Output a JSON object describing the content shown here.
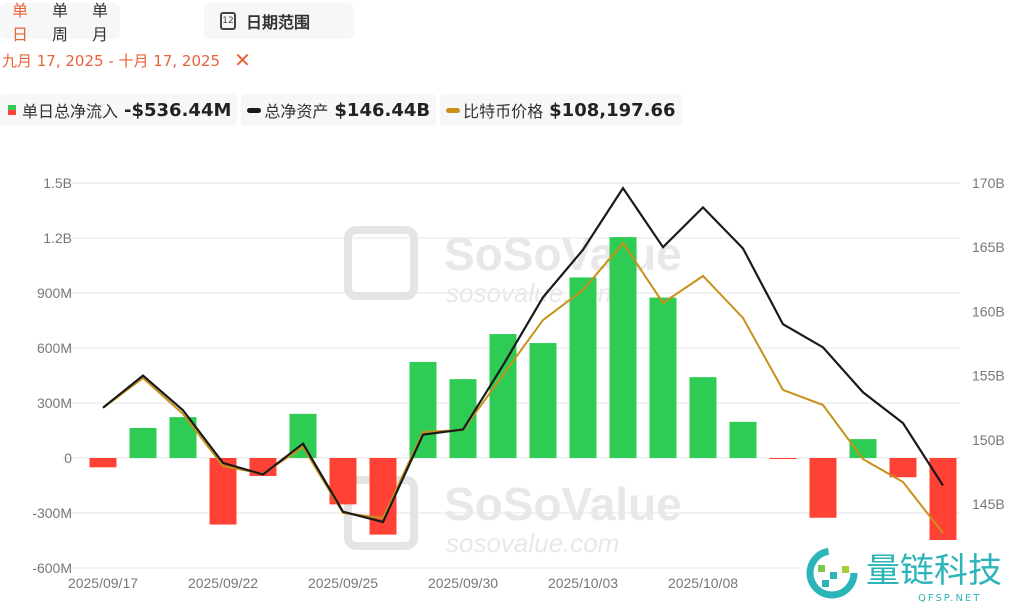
{
  "tabs": [
    "单日",
    "单周",
    "单月"
  ],
  "active_tab": 0,
  "date_range_button": "日期范围",
  "calendar_icon_day": "12",
  "date_range": "九月 17, 2025 - 十月 17, 2025",
  "legend": [
    {
      "name": "单日总净流入",
      "value": "-$536.44M"
    },
    {
      "name": "总净资产",
      "value": "$146.44B"
    },
    {
      "name": "比特币价格",
      "value": "$108,197.66"
    }
  ],
  "watermark": {
    "brand": "SoSoValue",
    "url": "sosovalue.com"
  },
  "logo": {
    "name": "量链科技",
    "url": "QFSP.NET"
  },
  "colors": {
    "positive": "#2ecc55",
    "negative": "#ff4136",
    "net_assets": "#1a1a1a",
    "btc_price": "#c8921a",
    "accent": "#e8623a"
  },
  "chart_data": {
    "type": "bar+line",
    "x": [
      "2025/09/17",
      "2025/09/18",
      "2025/09/19",
      "2025/09/22",
      "2025/09/23",
      "2025/09/24",
      "2025/09/25",
      "2025/09/26",
      "2025/09/29",
      "2025/09/30",
      "2025/10/01",
      "2025/10/02",
      "2025/10/03",
      "2025/10/06",
      "2025/10/07",
      "2025/10/08",
      "2025/10/09",
      "2025/10/10",
      "2025/10/13",
      "2025/10/14",
      "2025/10/15",
      "2025/10/16"
    ],
    "xtick_labels": [
      "2025/09/17",
      "2025/09/22",
      "2025/09/25",
      "2025/09/30",
      "2025/10/03",
      "2025/10/08",
      "202"
    ],
    "xtick_index": [
      0,
      3,
      6,
      9,
      12,
      15,
      18
    ],
    "left_axis": {
      "ticks": [
        "1.5B",
        "1.2B",
        "900M",
        "600M",
        "300M",
        "0",
        "-300M",
        "-600M"
      ],
      "range": [
        -600,
        1500
      ],
      "unit": "M"
    },
    "right_axis": {
      "ticks": [
        "170B",
        "165B",
        "160B",
        "155B",
        "150B",
        "145B"
      ],
      "range": [
        145,
        170
      ],
      "unit": "B"
    },
    "grid": true,
    "series": [
      {
        "name": "单日总净流入",
        "type": "bar",
        "unit": "M USD",
        "values": [
          -51,
          164,
          223,
          -363,
          -98,
          241,
          -253,
          -418,
          524,
          430,
          676,
          627,
          985,
          1205,
          875,
          441,
          197,
          -5,
          -326,
          103,
          -105,
          -536.44
        ]
      },
      {
        "name": "总净资产",
        "type": "line",
        "axis": "right",
        "unit": "B USD",
        "values": [
          152.5,
          155.0,
          152.3,
          148.2,
          147.3,
          149.7,
          144.4,
          143.6,
          150.4,
          150.8,
          155.8,
          161.1,
          164.8,
          169.6,
          165.0,
          168.1,
          164.9,
          159.0,
          157.2,
          153.7,
          151.3,
          146.44
        ]
      },
      {
        "name": "比特币价格",
        "type": "line",
        "unit": "USD",
        "values": [
          115450,
          117180,
          115100,
          112090,
          111630,
          113190,
          109370,
          109080,
          114060,
          114170,
          117360,
          120540,
          122280,
          125000,
          121530,
          123090,
          120660,
          116490,
          115620,
          112490,
          111160,
          108197.66
        ]
      }
    ]
  }
}
